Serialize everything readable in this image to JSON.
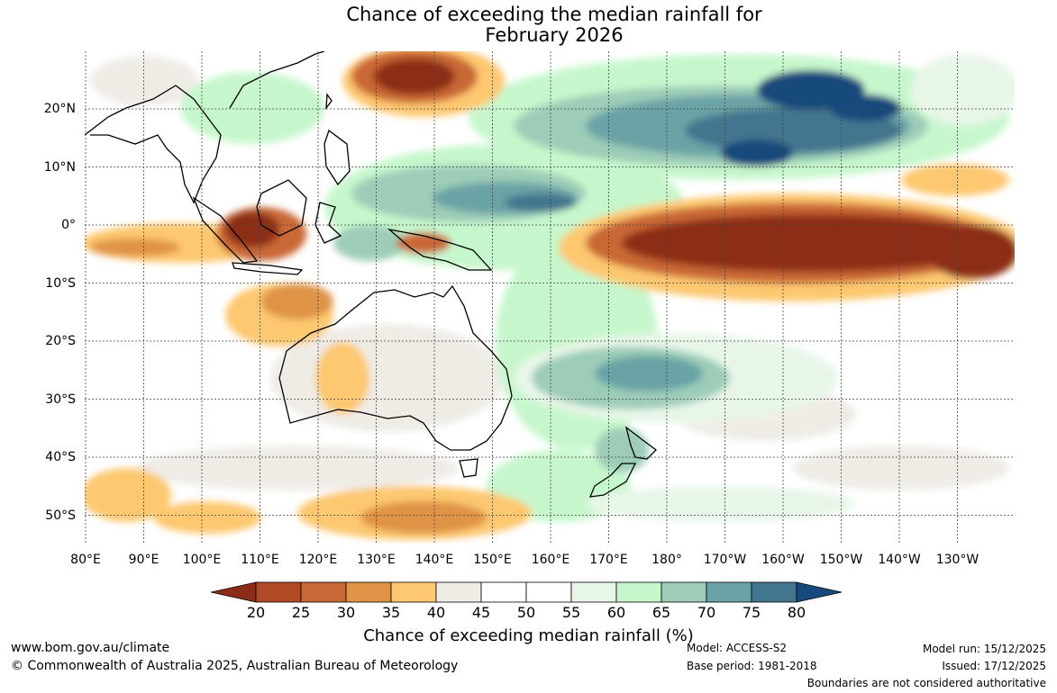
{
  "title": {
    "line1": "Chance of exceeding the median rainfall for",
    "line2": "February 2026"
  },
  "map": {
    "lon_ticks": [
      "80°E",
      "90°E",
      "100°E",
      "110°E",
      "120°E",
      "130°E",
      "140°E",
      "150°E",
      "160°E",
      "170°E",
      "180°",
      "170°W",
      "160°W",
      "150°W",
      "140°W",
      "130°W"
    ],
    "lat_ticks": [
      "20°N",
      "10°N",
      "0°",
      "10°S",
      "20°S",
      "30°S",
      "40°S",
      "50°S"
    ]
  },
  "legend": {
    "title": "Chance of exceeding median rainfall (%)",
    "ticks": [
      "20",
      "25",
      "30",
      "35",
      "40",
      "45",
      "50",
      "55",
      "60",
      "65",
      "70",
      "75",
      "80"
    ],
    "colors": [
      "#8c2d19",
      "#b24a28",
      "#c96836",
      "#df9346",
      "#fdc870",
      "#efece6",
      "#ffffff",
      "#ffffff",
      "#e8f6e8",
      "#c6f7cc",
      "#9dcdb8",
      "#6aa3a6",
      "#42768f",
      "#174a7c"
    ]
  },
  "footer": {
    "website": "www.bom.gov.au/climate",
    "copyright": "© Commonwealth of Australia 2025, Australian Bureau of Meteorology",
    "model": "Model: ACCESS-S2",
    "base_period": "Base period: 1981-2018",
    "model_run": "Model run: 15/12/2025",
    "issued": "Issued: 17/12/2025",
    "disclaimer": "Boundaries are not considered authoritative"
  },
  "colors": {
    "dark_dry": "#8c2d19",
    "dry": "#c96836",
    "light_dry": "#fdc870",
    "neutral": "#efece6",
    "light_wet": "#c6f7cc",
    "wet": "#6aa3a6",
    "dark_wet": "#174a7c"
  }
}
